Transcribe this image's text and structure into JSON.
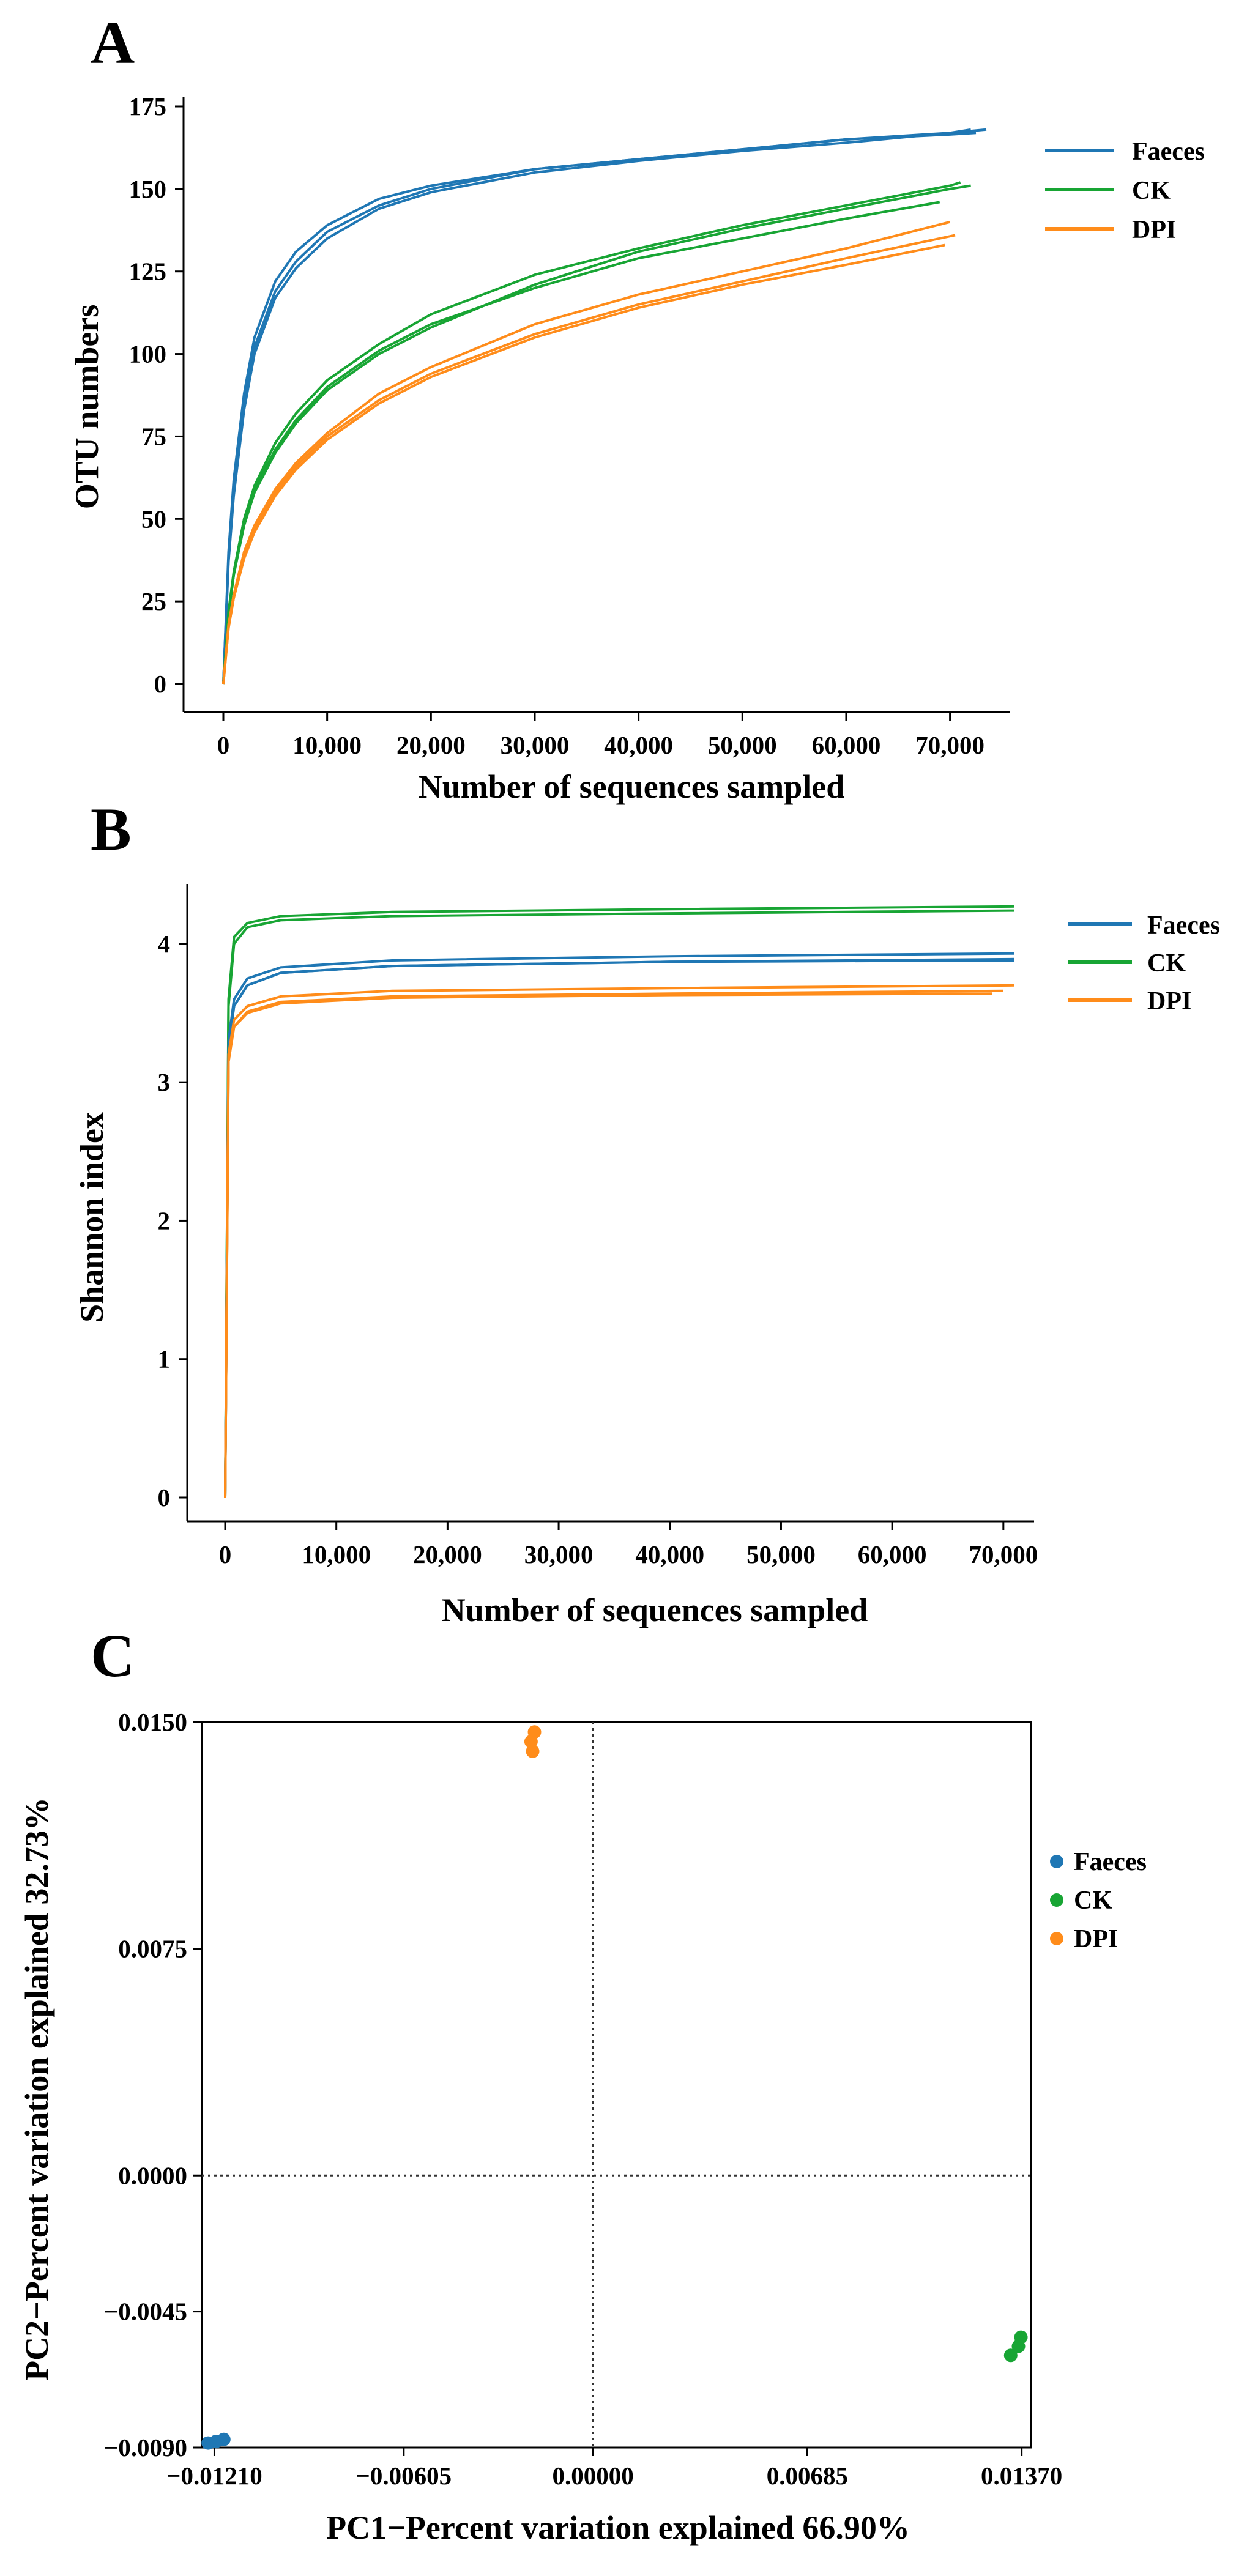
{
  "colors": {
    "faeces": "#1f77b4",
    "ck": "#18a534",
    "dpi": "#ff8c1a"
  },
  "chart_data": [
    {
      "panel": "A",
      "type": "line",
      "xlabel": "Number of sequences sampled",
      "ylabel": "OTU numbers",
      "xlim": [
        0,
        73500
      ],
      "ylim": [
        0,
        175
      ],
      "xticks": [
        0,
        10000,
        20000,
        30000,
        40000,
        50000,
        60000,
        70000
      ],
      "xtick_labels": [
        "0",
        "10,000",
        "20,000",
        "30,000",
        "40,000",
        "50,000",
        "60,000",
        "70,000"
      ],
      "yticks": [
        0,
        25,
        50,
        75,
        100,
        125,
        150,
        175
      ],
      "ytick_labels": [
        "0",
        "25",
        "50",
        "75",
        "100",
        "125",
        "150",
        "175"
      ],
      "legend": [
        "Faeces",
        "CK",
        "DPI"
      ],
      "legend_position": "top-right, outside plot",
      "series": [
        {
          "group": "Faeces",
          "xmax": 73500,
          "points": [
            [
              0,
              0
            ],
            [
              500,
              40
            ],
            [
              1000,
              62
            ],
            [
              2000,
              88
            ],
            [
              3000,
              105
            ],
            [
              5000,
              122
            ],
            [
              7000,
              131
            ],
            [
              10000,
              139
            ],
            [
              15000,
              147
            ],
            [
              20000,
              151
            ],
            [
              30000,
              156
            ],
            [
              40000,
              159
            ],
            [
              50000,
              162
            ],
            [
              60000,
              165
            ],
            [
              70000,
              167
            ],
            [
              73500,
              168
            ]
          ]
        },
        {
          "group": "Faeces",
          "xmax": 72500,
          "points": [
            [
              0,
              0
            ],
            [
              500,
              38
            ],
            [
              1000,
              59
            ],
            [
              2000,
              85
            ],
            [
              3000,
              102
            ],
            [
              5000,
              119
            ],
            [
              7000,
              128
            ],
            [
              10000,
              137
            ],
            [
              15000,
              145
            ],
            [
              20000,
              150
            ],
            [
              30000,
              156
            ],
            [
              40000,
              159
            ],
            [
              50000,
              162
            ],
            [
              60000,
              165
            ],
            [
              70000,
              166.5
            ],
            [
              72500,
              167
            ]
          ]
        },
        {
          "group": "Faeces",
          "xmax": 72000,
          "points": [
            [
              0,
              0
            ],
            [
              500,
              37
            ],
            [
              1000,
              57
            ],
            [
              2000,
              83
            ],
            [
              3000,
              100
            ],
            [
              5000,
              117
            ],
            [
              7000,
              126
            ],
            [
              10000,
              135
            ],
            [
              15000,
              144
            ],
            [
              20000,
              149
            ],
            [
              30000,
              155
            ],
            [
              40000,
              158.5
            ],
            [
              50000,
              161.5
            ],
            [
              60000,
              164
            ],
            [
              70000,
              167
            ],
            [
              72000,
              168
            ]
          ]
        },
        {
          "group": "CK",
          "xmax": 71000,
          "points": [
            [
              0,
              0
            ],
            [
              500,
              22
            ],
            [
              1000,
              34
            ],
            [
              2000,
              50
            ],
            [
              3000,
              60
            ],
            [
              5000,
              73
            ],
            [
              7000,
              82
            ],
            [
              10000,
              92
            ],
            [
              15000,
              103
            ],
            [
              20000,
              112
            ],
            [
              30000,
              124
            ],
            [
              40000,
              132
            ],
            [
              50000,
              139
            ],
            [
              60000,
              145
            ],
            [
              70000,
              151
            ],
            [
              71000,
              152
            ]
          ]
        },
        {
          "group": "CK",
          "xmax": 69000,
          "points": [
            [
              0,
              0
            ],
            [
              500,
              21
            ],
            [
              1000,
              33
            ],
            [
              2000,
              49
            ],
            [
              3000,
              59
            ],
            [
              5000,
              71
            ],
            [
              7000,
              80
            ],
            [
              10000,
              90
            ],
            [
              15000,
              101
            ],
            [
              20000,
              109
            ],
            [
              30000,
              120
            ],
            [
              40000,
              129
            ],
            [
              50000,
              135
            ],
            [
              60000,
              141
            ],
            [
              69000,
              146
            ]
          ]
        },
        {
          "group": "CK",
          "xmax": 72000,
          "points": [
            [
              0,
              0
            ],
            [
              500,
              21
            ],
            [
              1000,
              33
            ],
            [
              2000,
              48
            ],
            [
              3000,
              58
            ],
            [
              5000,
              70
            ],
            [
              7000,
              79
            ],
            [
              10000,
              89
            ],
            [
              15000,
              100
            ],
            [
              20000,
              108
            ],
            [
              30000,
              121
            ],
            [
              40000,
              131
            ],
            [
              50000,
              138
            ],
            [
              60000,
              144
            ],
            [
              70000,
              150
            ],
            [
              72000,
              151
            ]
          ]
        },
        {
          "group": "DPI",
          "xmax": 70000,
          "points": [
            [
              0,
              0
            ],
            [
              500,
              18
            ],
            [
              1000,
              27
            ],
            [
              2000,
              40
            ],
            [
              3000,
              48
            ],
            [
              5000,
              59
            ],
            [
              7000,
              67
            ],
            [
              10000,
              76
            ],
            [
              15000,
              88
            ],
            [
              20000,
              96
            ],
            [
              30000,
              109
            ],
            [
              40000,
              118
            ],
            [
              50000,
              125
            ],
            [
              60000,
              132
            ],
            [
              70000,
              140
            ]
          ]
        },
        {
          "group": "DPI",
          "xmax": 70500,
          "points": [
            [
              0,
              0
            ],
            [
              500,
              17
            ],
            [
              1000,
              26
            ],
            [
              2000,
              39
            ],
            [
              3000,
              47
            ],
            [
              5000,
              58
            ],
            [
              7000,
              66
            ],
            [
              10000,
              75
            ],
            [
              15000,
              86
            ],
            [
              20000,
              94
            ],
            [
              30000,
              106
            ],
            [
              40000,
              115
            ],
            [
              50000,
              122
            ],
            [
              60000,
              129
            ],
            [
              70500,
              136
            ]
          ]
        },
        {
          "group": "DPI",
          "xmax": 69500,
          "points": [
            [
              0,
              0
            ],
            [
              500,
              17
            ],
            [
              1000,
              26
            ],
            [
              2000,
              38
            ],
            [
              3000,
              46
            ],
            [
              5000,
              57
            ],
            [
              7000,
              65
            ],
            [
              10000,
              74
            ],
            [
              15000,
              85
            ],
            [
              20000,
              93
            ],
            [
              30000,
              105
            ],
            [
              40000,
              114
            ],
            [
              50000,
              121
            ],
            [
              60000,
              127
            ],
            [
              69500,
              133
            ]
          ]
        }
      ]
    },
    {
      "panel": "B",
      "type": "line",
      "xlabel": "Number of sequences sampled",
      "ylabel": "Shannon index",
      "xlim": [
        0,
        71000
      ],
      "ylim": [
        0,
        4.3
      ],
      "xticks": [
        0,
        10000,
        20000,
        30000,
        40000,
        50000,
        60000,
        70000
      ],
      "xtick_labels": [
        "0",
        "10,000",
        "20,000",
        "30,000",
        "40,000",
        "50,000",
        "60,000",
        "70,000"
      ],
      "yticks": [
        0,
        1,
        2,
        3,
        4
      ],
      "ytick_labels": [
        "0",
        "1",
        "2",
        "3",
        "4"
      ],
      "legend": [
        "Faeces",
        "CK",
        "DPI"
      ],
      "legend_position": "top-right, outside plot",
      "series": [
        {
          "group": "CK",
          "points": [
            [
              0,
              0
            ],
            [
              300,
              3.6
            ],
            [
              800,
              4.05
            ],
            [
              2000,
              4.15
            ],
            [
              5000,
              4.2
            ],
            [
              15000,
              4.23
            ],
            [
              40000,
              4.25
            ],
            [
              71000,
              4.27
            ]
          ]
        },
        {
          "group": "CK",
          "points": [
            [
              0,
              0
            ],
            [
              300,
              3.55
            ],
            [
              800,
              4.0
            ],
            [
              2000,
              4.12
            ],
            [
              5000,
              4.17
            ],
            [
              15000,
              4.2
            ],
            [
              40000,
              4.22
            ],
            [
              71000,
              4.24
            ]
          ]
        },
        {
          "group": "Faeces",
          "points": [
            [
              0,
              0
            ],
            [
              300,
              3.3
            ],
            [
              800,
              3.6
            ],
            [
              2000,
              3.75
            ],
            [
              5000,
              3.83
            ],
            [
              15000,
              3.88
            ],
            [
              40000,
              3.91
            ],
            [
              71000,
              3.93
            ]
          ]
        },
        {
          "group": "Faeces",
          "points": [
            [
              0,
              0
            ],
            [
              300,
              3.25
            ],
            [
              800,
              3.55
            ],
            [
              2000,
              3.7
            ],
            [
              5000,
              3.79
            ],
            [
              15000,
              3.84
            ],
            [
              40000,
              3.87
            ],
            [
              71000,
              3.89
            ]
          ]
        },
        {
          "group": "Faeces",
          "points": [
            [
              0,
              0
            ],
            [
              300,
              3.25
            ],
            [
              800,
              3.55
            ],
            [
              2000,
              3.7
            ],
            [
              5000,
              3.79
            ],
            [
              15000,
              3.84
            ],
            [
              40000,
              3.87
            ],
            [
              71000,
              3.88
            ]
          ]
        },
        {
          "group": "DPI",
          "points": [
            [
              0,
              0
            ],
            [
              300,
              3.2
            ],
            [
              800,
              3.45
            ],
            [
              2000,
              3.55
            ],
            [
              5000,
              3.62
            ],
            [
              15000,
              3.66
            ],
            [
              40000,
              3.68
            ],
            [
              71000,
              3.7
            ]
          ]
        },
        {
          "group": "DPI",
          "points": [
            [
              0,
              0
            ],
            [
              300,
              3.15
            ],
            [
              800,
              3.4
            ],
            [
              2000,
              3.51
            ],
            [
              5000,
              3.58
            ],
            [
              15000,
              3.62
            ],
            [
              40000,
              3.64
            ],
            [
              70000,
              3.66
            ]
          ]
        },
        {
          "group": "DPI",
          "points": [
            [
              0,
              0
            ],
            [
              300,
              3.15
            ],
            [
              800,
              3.4
            ],
            [
              2000,
              3.5
            ],
            [
              5000,
              3.57
            ],
            [
              15000,
              3.61
            ],
            [
              40000,
              3.63
            ],
            [
              69000,
              3.64
            ]
          ]
        }
      ]
    },
    {
      "panel": "C",
      "type": "scatter",
      "xlabel": "PC1−Percent variation explained 66.90%",
      "ylabel": "PC2−Percent variation explained 32.73%",
      "xlim": [
        -0.0125,
        0.014
      ],
      "ylim": [
        -0.009,
        0.015
      ],
      "xticks": [
        -0.0121,
        -0.00605,
        0.0,
        0.00685,
        0.0137
      ],
      "xtick_labels": [
        "−0.01210",
        "−0.00605",
        "0.00000",
        "0.00685",
        "0.01370"
      ],
      "yticks": [
        -0.009,
        -0.0045,
        0.0,
        0.0075,
        0.015
      ],
      "ytick_labels": [
        "−0.0090",
        "−0.0045",
        "0.0000",
        "0.0075",
        "0.0150"
      ],
      "reference_lines": {
        "x": 0,
        "y": 0,
        "style": "dotted"
      },
      "legend": [
        "Faeces",
        "CK",
        "DPI"
      ],
      "legend_position": "right, outside plot",
      "series": [
        {
          "name": "Faeces",
          "points": [
            [
              -0.0123,
              -0.00885
            ],
            [
              -0.01205,
              -0.0088
            ],
            [
              -0.0118,
              -0.00873
            ]
          ]
        },
        {
          "name": "CK",
          "points": [
            [
              0.01335,
              -0.00595
            ],
            [
              0.0136,
              -0.00565
            ],
            [
              0.01368,
              -0.00535
            ]
          ]
        },
        {
          "name": "DPI",
          "points": [
            [
              -0.00187,
              0.01467
            ],
            [
              -0.00198,
              0.01435
            ],
            [
              -0.00193,
              0.01403
            ]
          ]
        }
      ]
    }
  ]
}
